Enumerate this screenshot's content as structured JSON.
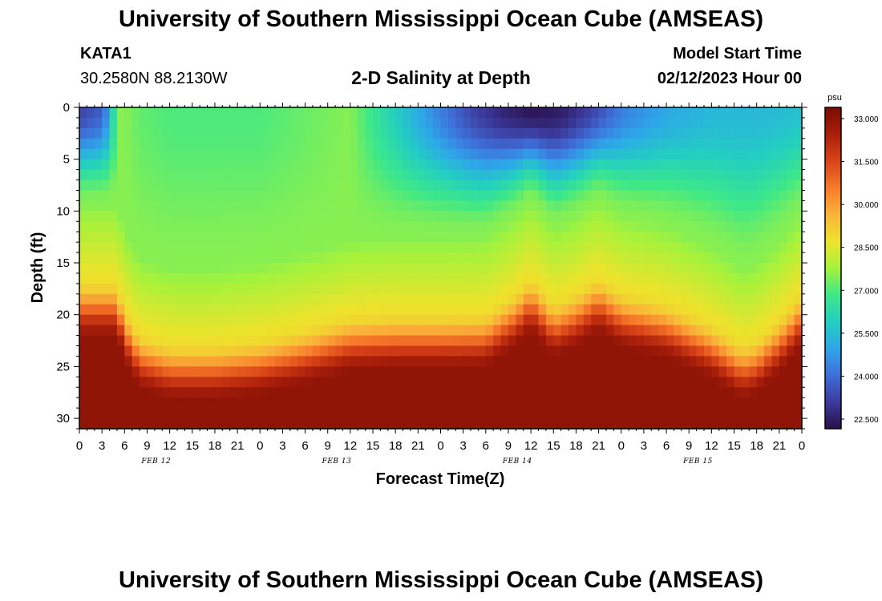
{
  "header": {
    "title": "University of Southern Mississippi Ocean Cube (AMSEAS)",
    "station": "KATA1",
    "coords": "30.2580N  88.2130W",
    "subtitle": "2-D Salinity at Depth",
    "model_start_label": "Model Start Time",
    "model_start_value": "02/12/2023 Hour 00"
  },
  "footer": {
    "title": "University of Southern Mississippi Ocean Cube (AMSEAS)"
  },
  "colorbar": {
    "unit": "psu",
    "labels": [
      "33.000",
      "31.500",
      "30.000",
      "28.500",
      "27.000",
      "25.500",
      "24.000",
      "22.500"
    ],
    "colors": [
      "#2a0f4a",
      "#3c3a9c",
      "#3f6fd9",
      "#2ea6ea",
      "#23cfc0",
      "#3ee888",
      "#a5f23c",
      "#eee32c",
      "#fab33a",
      "#f77a2a",
      "#d94418",
      "#aa1f0b",
      "#7a0c04"
    ]
  },
  "chart_data": {
    "type": "heatmap",
    "title": "2-D Salinity at Depth",
    "xlabel": "Forecast Time(Z)",
    "ylabel": "Depth (ft)",
    "x_range_hours": [
      0,
      96
    ],
    "y_range_ft": [
      0,
      31
    ],
    "x_tick_labels": [
      "0",
      "3",
      "6",
      "9",
      "12",
      "15",
      "18",
      "21",
      "0",
      "3",
      "6",
      "9",
      "12",
      "15",
      "18",
      "21",
      "0",
      "3",
      "6",
      "9",
      "12",
      "15",
      "18",
      "21",
      "0",
      "3",
      "6",
      "9",
      "12",
      "15",
      "18",
      "21",
      "0"
    ],
    "y_tick_labels": [
      "0",
      "5",
      "10",
      "15",
      "20",
      "25",
      "30"
    ],
    "day_labels": [
      "FEB 12",
      "FEB 13",
      "FEB 14",
      "FEB 15"
    ],
    "value_range_psu": [
      22.5,
      33.0
    ],
    "colorbar_unit": "psu",
    "halocline_depth_ft": {
      "hours": [
        0,
        3,
        5,
        6,
        8,
        12,
        18,
        24,
        30,
        36,
        42,
        48,
        54,
        58,
        60,
        63,
        66,
        69,
        72,
        78,
        84,
        86,
        88,
        90,
        93,
        96
      ],
      "depth": [
        16.5,
        16.5,
        16.5,
        19,
        21.5,
        22.5,
        22.5,
        22,
        21,
        19.8,
        19.6,
        19.6,
        19.5,
        17.5,
        16,
        18.5,
        17.5,
        16,
        17.5,
        18.5,
        20.5,
        21.5,
        22.5,
        22,
        20,
        17.5
      ]
    },
    "surface_salinity_psu": {
      "hours": [
        0,
        3,
        4,
        5,
        6,
        8,
        12,
        24,
        36,
        40,
        42,
        44,
        48,
        52,
        56,
        60,
        64,
        68,
        72,
        78,
        84,
        90,
        96
      ],
      "psu": [
        23.5,
        24.0,
        25.2,
        27.5,
        27.5,
        27.2,
        27.0,
        27.0,
        27.5,
        26.5,
        26.0,
        25.5,
        24.5,
        23.6,
        23.0,
        22.6,
        22.8,
        23.5,
        24.5,
        25.2,
        25.5,
        25.5,
        25.7
      ]
    },
    "bottom_salinity_psu": 32.6
  }
}
